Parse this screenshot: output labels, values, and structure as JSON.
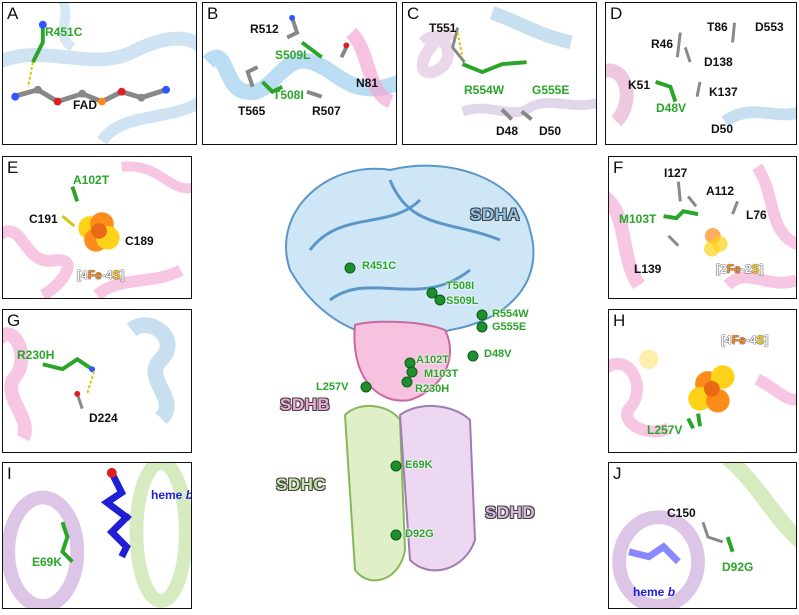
{
  "panels": {
    "A": {
      "letter": "A",
      "mutation": "R451C",
      "cofactor": "FAD"
    },
    "B": {
      "letter": "B",
      "r512": "R512",
      "mutation1": "S509L",
      "n81": "N81",
      "mutation2": "T508I",
      "t565": "T565",
      "r507": "R507"
    },
    "C": {
      "letter": "C",
      "t551": "T551",
      "mutation1": "R554W",
      "mutation2": "G555E",
      "d48": "D48",
      "d50": "D50"
    },
    "D": {
      "letter": "D",
      "r46": "R46",
      "t86": "T86",
      "d553": "D553",
      "d138": "D138",
      "k51": "K51",
      "k137": "K137",
      "mutation": "D48V",
      "d50": "D50"
    },
    "E": {
      "letter": "E",
      "mutation": "A102T",
      "c191": "C191",
      "c189": "C189",
      "cluster_open": "[",
      "cluster_n1": "4",
      "cluster_fe": "Fe",
      "cluster_dash": "-",
      "cluster_n2": "4",
      "cluster_s": "S",
      "cluster_close": "]"
    },
    "F": {
      "letter": "F",
      "i127": "I127",
      "a112": "A112",
      "mutation": "M103T",
      "l76": "L76",
      "l139": "L139",
      "cluster_open": "[",
      "cluster_n1": "2",
      "cluster_fe": "Fe",
      "cluster_dash": "-",
      "cluster_n2": "2",
      "cluster_s": "S",
      "cluster_close": "]"
    },
    "G": {
      "letter": "G",
      "mutation": "R230H",
      "d224": "D224"
    },
    "H": {
      "letter": "H",
      "mutation": "L257V",
      "cluster_open": "[",
      "cluster_n1": "4",
      "cluster_fe": "Fe",
      "cluster_dash": "-",
      "cluster_n2": "4",
      "cluster_s": "S",
      "cluster_close": "]"
    },
    "I": {
      "letter": "I",
      "heme_word": "heme",
      "heme_b": "b",
      "mutation": "E69K"
    },
    "J": {
      "letter": "J",
      "c150": "C150",
      "heme_word": "heme",
      "heme_b": "b",
      "mutation": "D92G"
    }
  },
  "center": {
    "subunits": {
      "sdha": "SDHA",
      "sdhb": "SDHB",
      "sdhc": "SDHC",
      "sdhd": "SDHD"
    },
    "mutations": [
      "R451C",
      "T508I",
      "S509L",
      "R554W",
      "G555E",
      "A102T",
      "D48V",
      "M103T",
      "L257V",
      "R230H",
      "E69K",
      "D92G"
    ]
  },
  "colors": {
    "sdha": "#8cc4ec",
    "sdhb": "#f4a6d4",
    "sdhc": "#c8e6a8",
    "sdhd": "#d9b8e0",
    "mutation_green": "#2aa52a",
    "heme_blue": "#1f1fd6",
    "sphere_green": "#1e8f2e"
  }
}
